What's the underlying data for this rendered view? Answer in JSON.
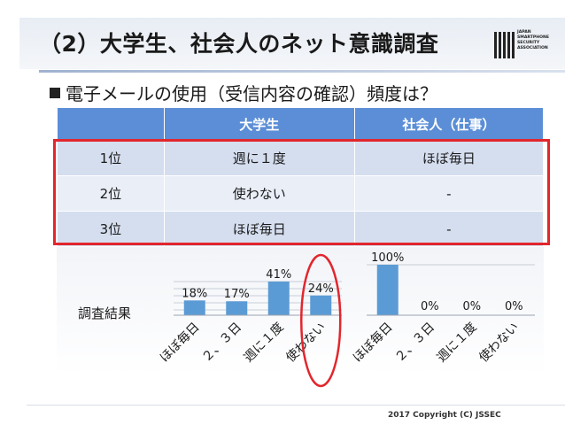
{
  "slide": {
    "title": "（2）大学生、社会人のネット意識調査",
    "bullet": "電子メールの使用（受信内容の確認）頻度は？",
    "logo_lines": [
      "JAPAN",
      "SMARTPHONE",
      "SECURITY",
      "ASSOCIATION"
    ],
    "copyright": "2017 Copyright (C) JSSEC",
    "result_label": "調査結果"
  },
  "table": {
    "headers": [
      "",
      "大学生",
      "社会人（仕事）"
    ],
    "rows": [
      [
        "1位",
        "週に１度",
        "ほぼ毎日"
      ],
      [
        "2位",
        "使わない",
        "-"
      ],
      [
        "3位",
        "ほぼ毎日",
        "-"
      ]
    ]
  },
  "colors": {
    "header": "#5b8ed6",
    "bar": "#5b9bd5",
    "highlight": "#e2262d"
  },
  "chart_data": [
    {
      "type": "bar",
      "group": "大学生",
      "categories": [
        "ほぼ毎日",
        "２、３日",
        "週に１度",
        "使わない"
      ],
      "values": [
        18,
        17,
        41,
        24
      ],
      "labels": [
        "18%",
        "17%",
        "41%",
        "24%"
      ],
      "ylim": [
        0,
        60
      ],
      "grid": true,
      "circled_category": "使わない"
    },
    {
      "type": "bar",
      "group": "社会人（仕事）",
      "categories": [
        "ほぼ毎日",
        "２、３日",
        "週に１度",
        "使わない"
      ],
      "values": [
        100,
        0,
        0,
        0
      ],
      "labels": [
        "100%",
        "0%",
        "0%",
        "0%"
      ],
      "ylim": [
        0,
        100
      ],
      "grid": true
    }
  ]
}
